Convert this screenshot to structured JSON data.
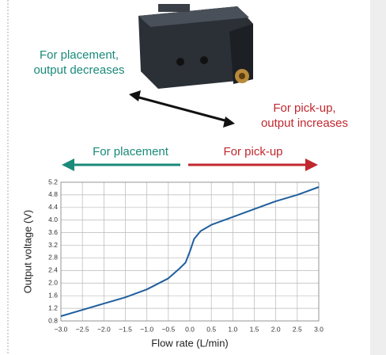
{
  "chart_data": {
    "type": "line",
    "annotations": [
      {
        "text": [
          "For placement,",
          "output decreases"
        ],
        "color": "#1a8a7a"
      },
      {
        "text": [
          "For pick-up,",
          "output increases"
        ],
        "color": "#c0282e"
      }
    ],
    "direction_labels": [
      {
        "text": "For placement",
        "color": "#1a8a7a"
      },
      {
        "text": "For pick-up",
        "color": "#c0282e"
      }
    ],
    "x_label": "Flow rate (L/min)",
    "y_label": "Output voltage (V)",
    "x": [
      -3.0,
      -2.5,
      -2.0,
      -1.5,
      -1.0,
      -0.5,
      -0.25,
      -0.1,
      0.0,
      0.1,
      0.25,
      0.5,
      1.0,
      1.5,
      2.0,
      2.5,
      3.0
    ],
    "values": [
      0.95,
      1.15,
      1.35,
      1.55,
      1.8,
      2.15,
      2.45,
      2.65,
      3.0,
      3.4,
      3.65,
      3.85,
      4.1,
      4.35,
      4.6,
      4.8,
      5.05
    ],
    "color": "#1f5f9e",
    "xlim": [
      -3.0,
      3.0
    ],
    "ylim": [
      0.8,
      5.2
    ],
    "xticks": [
      {
        "value": -3.0,
        "label": "−3.0"
      },
      {
        "value": -2.5,
        "label": "−2.5"
      },
      {
        "value": -2.0,
        "label": "−2.0"
      },
      {
        "value": -1.5,
        "label": "−1.5"
      },
      {
        "value": -1.0,
        "label": "−1.0"
      },
      {
        "value": -0.5,
        "label": "−0.5"
      },
      {
        "value": 0,
        "label": "0.0"
      },
      0.5,
      {
        "value": 1,
        "label": "1.0"
      },
      1.5,
      {
        "value": 2,
        "label": "2.0"
      },
      2.5,
      {
        "value": 3,
        "label": "3.0"
      }
    ],
    "yticks": [
      0.8,
      1.2,
      1.6,
      {
        "value": 2,
        "label": "2.0"
      },
      2.4,
      2.8,
      3.2,
      3.6,
      {
        "value": 4,
        "label": "4.0"
      },
      4.4,
      4.8,
      5.2
    ],
    "grid": true
  }
}
